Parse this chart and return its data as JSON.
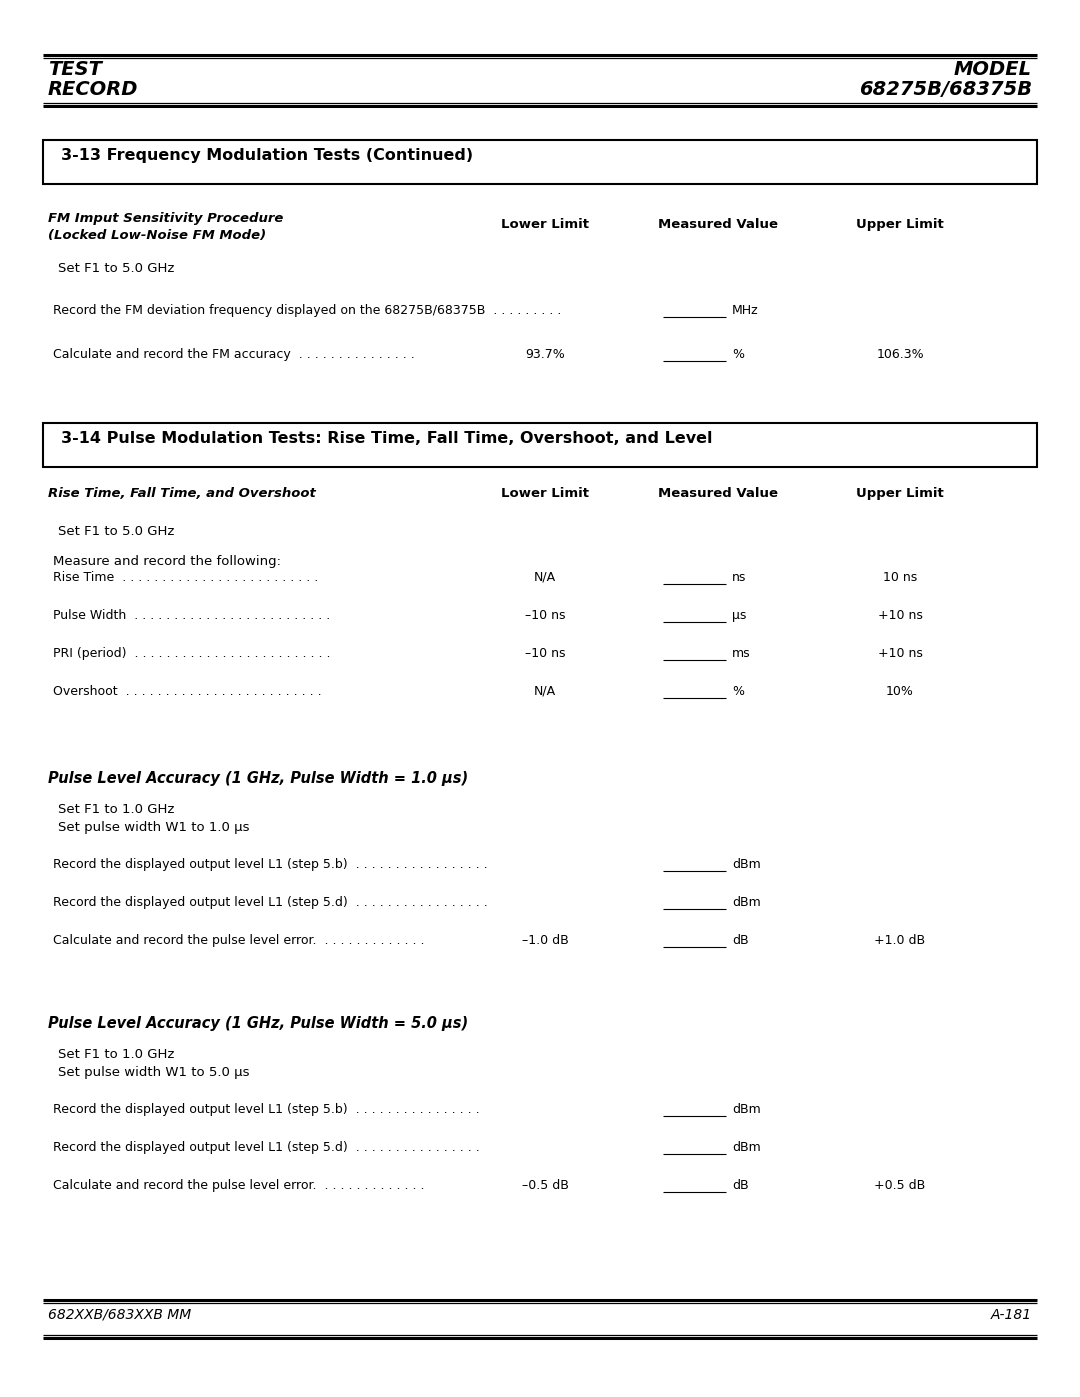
{
  "page_width": 10.8,
  "page_height": 13.97,
  "bg_color": "#ffffff",
  "header": {
    "left_line1": "TEST",
    "left_line2": "RECORD",
    "right_line1": "MODEL",
    "right_line2": "68275B/68375B"
  },
  "footer": {
    "left": "682XXB/683XXB MM",
    "right": "A-181"
  },
  "section1": {
    "title": "3-13 Frequency Modulation Tests (Continued)",
    "sub_line1": "FM Imput Sensitivity Procedure",
    "sub_line2": "(Locked Low-Noise FM Mode)",
    "col_lower": "Lower Limit",
    "col_measured": "Measured Value",
    "col_upper": "Upper Limit",
    "setup": "Set F1 to 5.0 GHz",
    "rows": [
      {
        "label": "Record the FM deviation frequency displayed on the 68275B/68375B  . . . . . . . . .",
        "lower": "",
        "measured_unit": "MHz",
        "upper": ""
      },
      {
        "label": "Calculate and record the FM accuracy  . . . . . . . . . . . . . . .",
        "lower": "93.7%",
        "measured_unit": "%",
        "upper": "106.3%"
      }
    ]
  },
  "section2": {
    "title": "3-14 Pulse Modulation Tests: Rise Time, Fall Time, Overshoot, and Level",
    "sub_title": "Rise Time, Fall Time, and Overshoot",
    "col_lower": "Lower Limit",
    "col_measured": "Measured Value",
    "col_upper": "Upper Limit",
    "setup": "Set F1 to 5.0 GHz",
    "setup2": "Measure and record the following:",
    "rows": [
      {
        "label": "Rise Time  . . . . . . . . . . . . . . . . . . . . . . . . .",
        "lower": "N/A",
        "measured_unit": "ns",
        "upper": "10 ns"
      },
      {
        "label": "Pulse Width  . . . . . . . . . . . . . . . . . . . . . . . . .",
        "lower": "–10 ns",
        "measured_unit": "μs",
        "upper": "+10 ns"
      },
      {
        "label": "PRI (period)  . . . . . . . . . . . . . . . . . . . . . . . . .",
        "lower": "–10 ns",
        "measured_unit": "ms",
        "upper": "+10 ns"
      },
      {
        "label": "Overshoot  . . . . . . . . . . . . . . . . . . . . . . . . .",
        "lower": "N/A",
        "measured_unit": "%",
        "upper": "10%"
      }
    ]
  },
  "section3": {
    "title_plain": "Pulse Level Accuracy (1 GHz, Pulse Width = 1.0 ",
    "title_mu": "μs)",
    "setup_line1": "Set F1 to 1.0 GHz",
    "setup_line2": "Set pulse width W1 to 1.0 μs",
    "rows": [
      {
        "label": "Record the displayed output level L1 (step 5.b)  . . . . . . . . . . . . . . . . .",
        "lower": "",
        "measured_unit": "dBm",
        "upper": ""
      },
      {
        "label": "Record the displayed output level L1 (step 5.d)  . . . . . . . . . . . . . . . . .",
        "lower": "",
        "measured_unit": "dBm",
        "upper": ""
      },
      {
        "label": "Calculate and record the pulse level error.  . . . . . . . . . . . . .",
        "lower": "–1.0 dB",
        "measured_unit": "dB",
        "upper": "+1.0 dB"
      }
    ]
  },
  "section4": {
    "title_plain": "Pulse Level Accuracy (1 GHz, Pulse Width = 5.0 ",
    "title_mu": "μs)",
    "setup_line1": "Set F1 to 1.0 GHz",
    "setup_line2": "Set pulse width W1 to 5.0 μs",
    "rows": [
      {
        "label": "Record the displayed output level L1 (step 5.b)  . . . . . . . . . . . . . . . .",
        "lower": "",
        "measured_unit": "dBm",
        "upper": ""
      },
      {
        "label": "Record the displayed output level L1 (step 5.d)  . . . . . . . . . . . . . . . .",
        "lower": "",
        "measured_unit": "dBm",
        "upper": ""
      },
      {
        "label": "Calculate and record the pulse level error.  . . . . . . . . . . . . .",
        "lower": "–0.5 dB",
        "measured_unit": "dB",
        "upper": "+0.5 dB"
      }
    ]
  }
}
